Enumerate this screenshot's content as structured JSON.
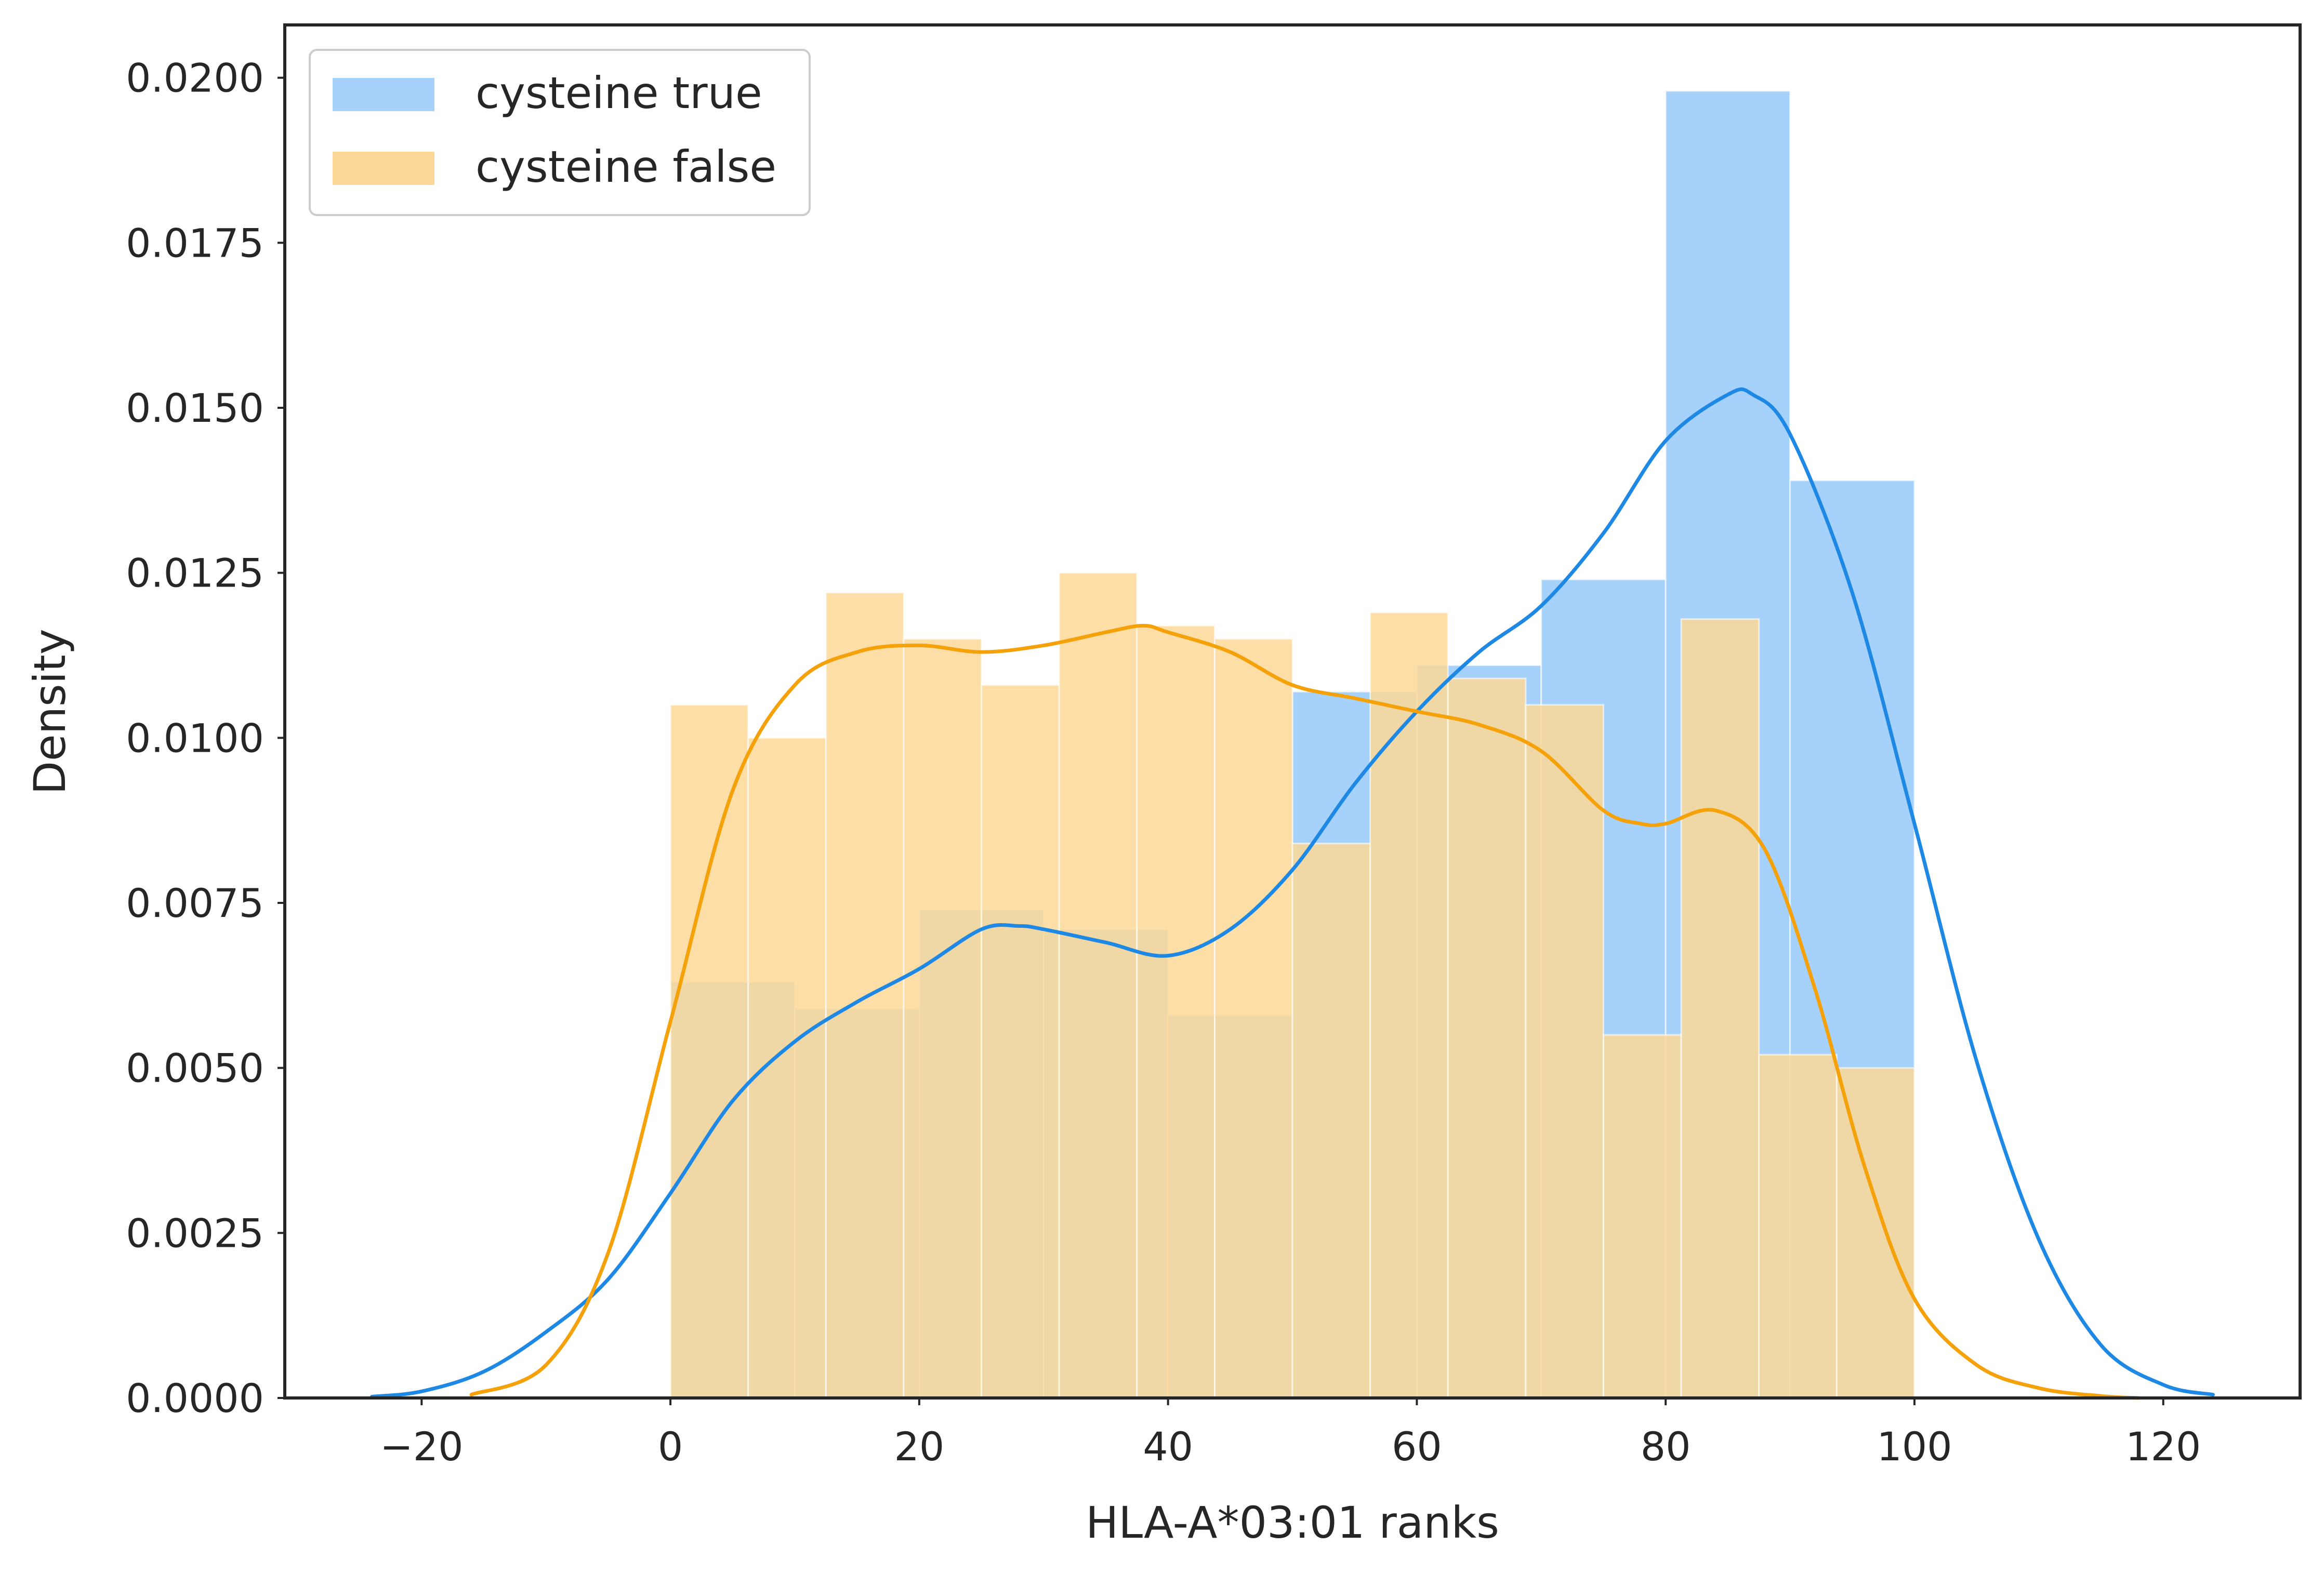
{
  "chart_data": {
    "type": "bar",
    "xlabel": "HLA-A*03:01 ranks",
    "ylabel": "Density",
    "xlim": [
      -31,
      131
    ],
    "ylim": [
      0,
      0.0208
    ],
    "x_ticks": [
      -20,
      0,
      20,
      40,
      60,
      80,
      100,
      120
    ],
    "x_tick_labels": [
      "−20",
      "0",
      "20",
      "40",
      "60",
      "80",
      "100",
      "120"
    ],
    "y_ticks": [
      0,
      0.0025,
      0.005,
      0.0075,
      0.01,
      0.0125,
      0.015,
      0.0175,
      0.02
    ],
    "y_tick_labels": [
      "0.0000",
      "0.0025",
      "0.0050",
      "0.0075",
      "0.0100",
      "0.0125",
      "0.0150",
      "0.0175",
      "0.0200"
    ],
    "grid": false,
    "legend_position": "top-left",
    "series": [
      {
        "name": "cysteine true",
        "hist_color": "#a6d1fb",
        "line_color": "#1e88e5",
        "bin_edges": [
          0,
          10,
          20,
          30,
          40,
          50,
          60,
          70,
          80,
          90,
          100
        ],
        "densities": [
          0.0063,
          0.0059,
          0.0074,
          0.0071,
          0.0058,
          0.0107,
          0.0111,
          0.0124,
          0.0198,
          0.0139
        ],
        "kde": {
          "x": [
            -24,
            -20,
            -15,
            -10,
            -5,
            0,
            5,
            10,
            15,
            20,
            25,
            28,
            30,
            35,
            40,
            45,
            50,
            55,
            60,
            65,
            70,
            75,
            80,
            85,
            87,
            90,
            95,
            100,
            105,
            110,
            115,
            120,
            124
          ],
          "y": [
            2e-05,
            0.0001,
            0.0004,
            0.001,
            0.0018,
            0.0031,
            0.0045,
            0.0054,
            0.006,
            0.0065,
            0.0071,
            0.00715,
            0.0071,
            0.0069,
            0.0067,
            0.0071,
            0.008,
            0.0093,
            0.0104,
            0.0113,
            0.012,
            0.0131,
            0.0145,
            0.0152,
            0.0152,
            0.0146,
            0.0122,
            0.0087,
            0.0051,
            0.0024,
            0.0008,
            0.0002,
            5e-05
          ]
        }
      },
      {
        "name": "cysteine false",
        "hist_color": "#fbd896",
        "line_color": "#f5a10a",
        "bin_edges": [
          0,
          6.25,
          12.5,
          18.75,
          25,
          31.25,
          37.5,
          43.75,
          50,
          56.25,
          62.5,
          68.75,
          75,
          81.25,
          87.5,
          93.75,
          100
        ],
        "densities": [
          0.0105,
          0.01,
          0.0122,
          0.0115,
          0.0108,
          0.0125,
          0.0117,
          0.0115,
          0.0084,
          0.0119,
          0.0109,
          0.0105,
          0.0055,
          0.0118,
          0.0052,
          0.005
        ],
        "kde": {
          "x": [
            -16,
            -10,
            -5,
            0,
            5,
            10,
            15,
            20,
            25,
            30,
            35,
            38,
            40,
            45,
            50,
            55,
            60,
            65,
            70,
            75,
            78,
            80,
            84,
            88,
            92,
            96,
            100,
            105,
            110,
            115,
            118
          ],
          "y": [
            5e-05,
            0.0005,
            0.0022,
            0.0057,
            0.0092,
            0.0108,
            0.0113,
            0.0114,
            0.0113,
            0.0114,
            0.0116,
            0.0117,
            0.0116,
            0.0113,
            0.0108,
            0.0106,
            0.0104,
            0.0102,
            0.0098,
            0.0089,
            0.0087,
            0.0087,
            0.0089,
            0.0083,
            0.0062,
            0.0035,
            0.0015,
            0.0005,
            0.00015,
            3e-05,
            0.0
          ]
        }
      }
    ]
  }
}
